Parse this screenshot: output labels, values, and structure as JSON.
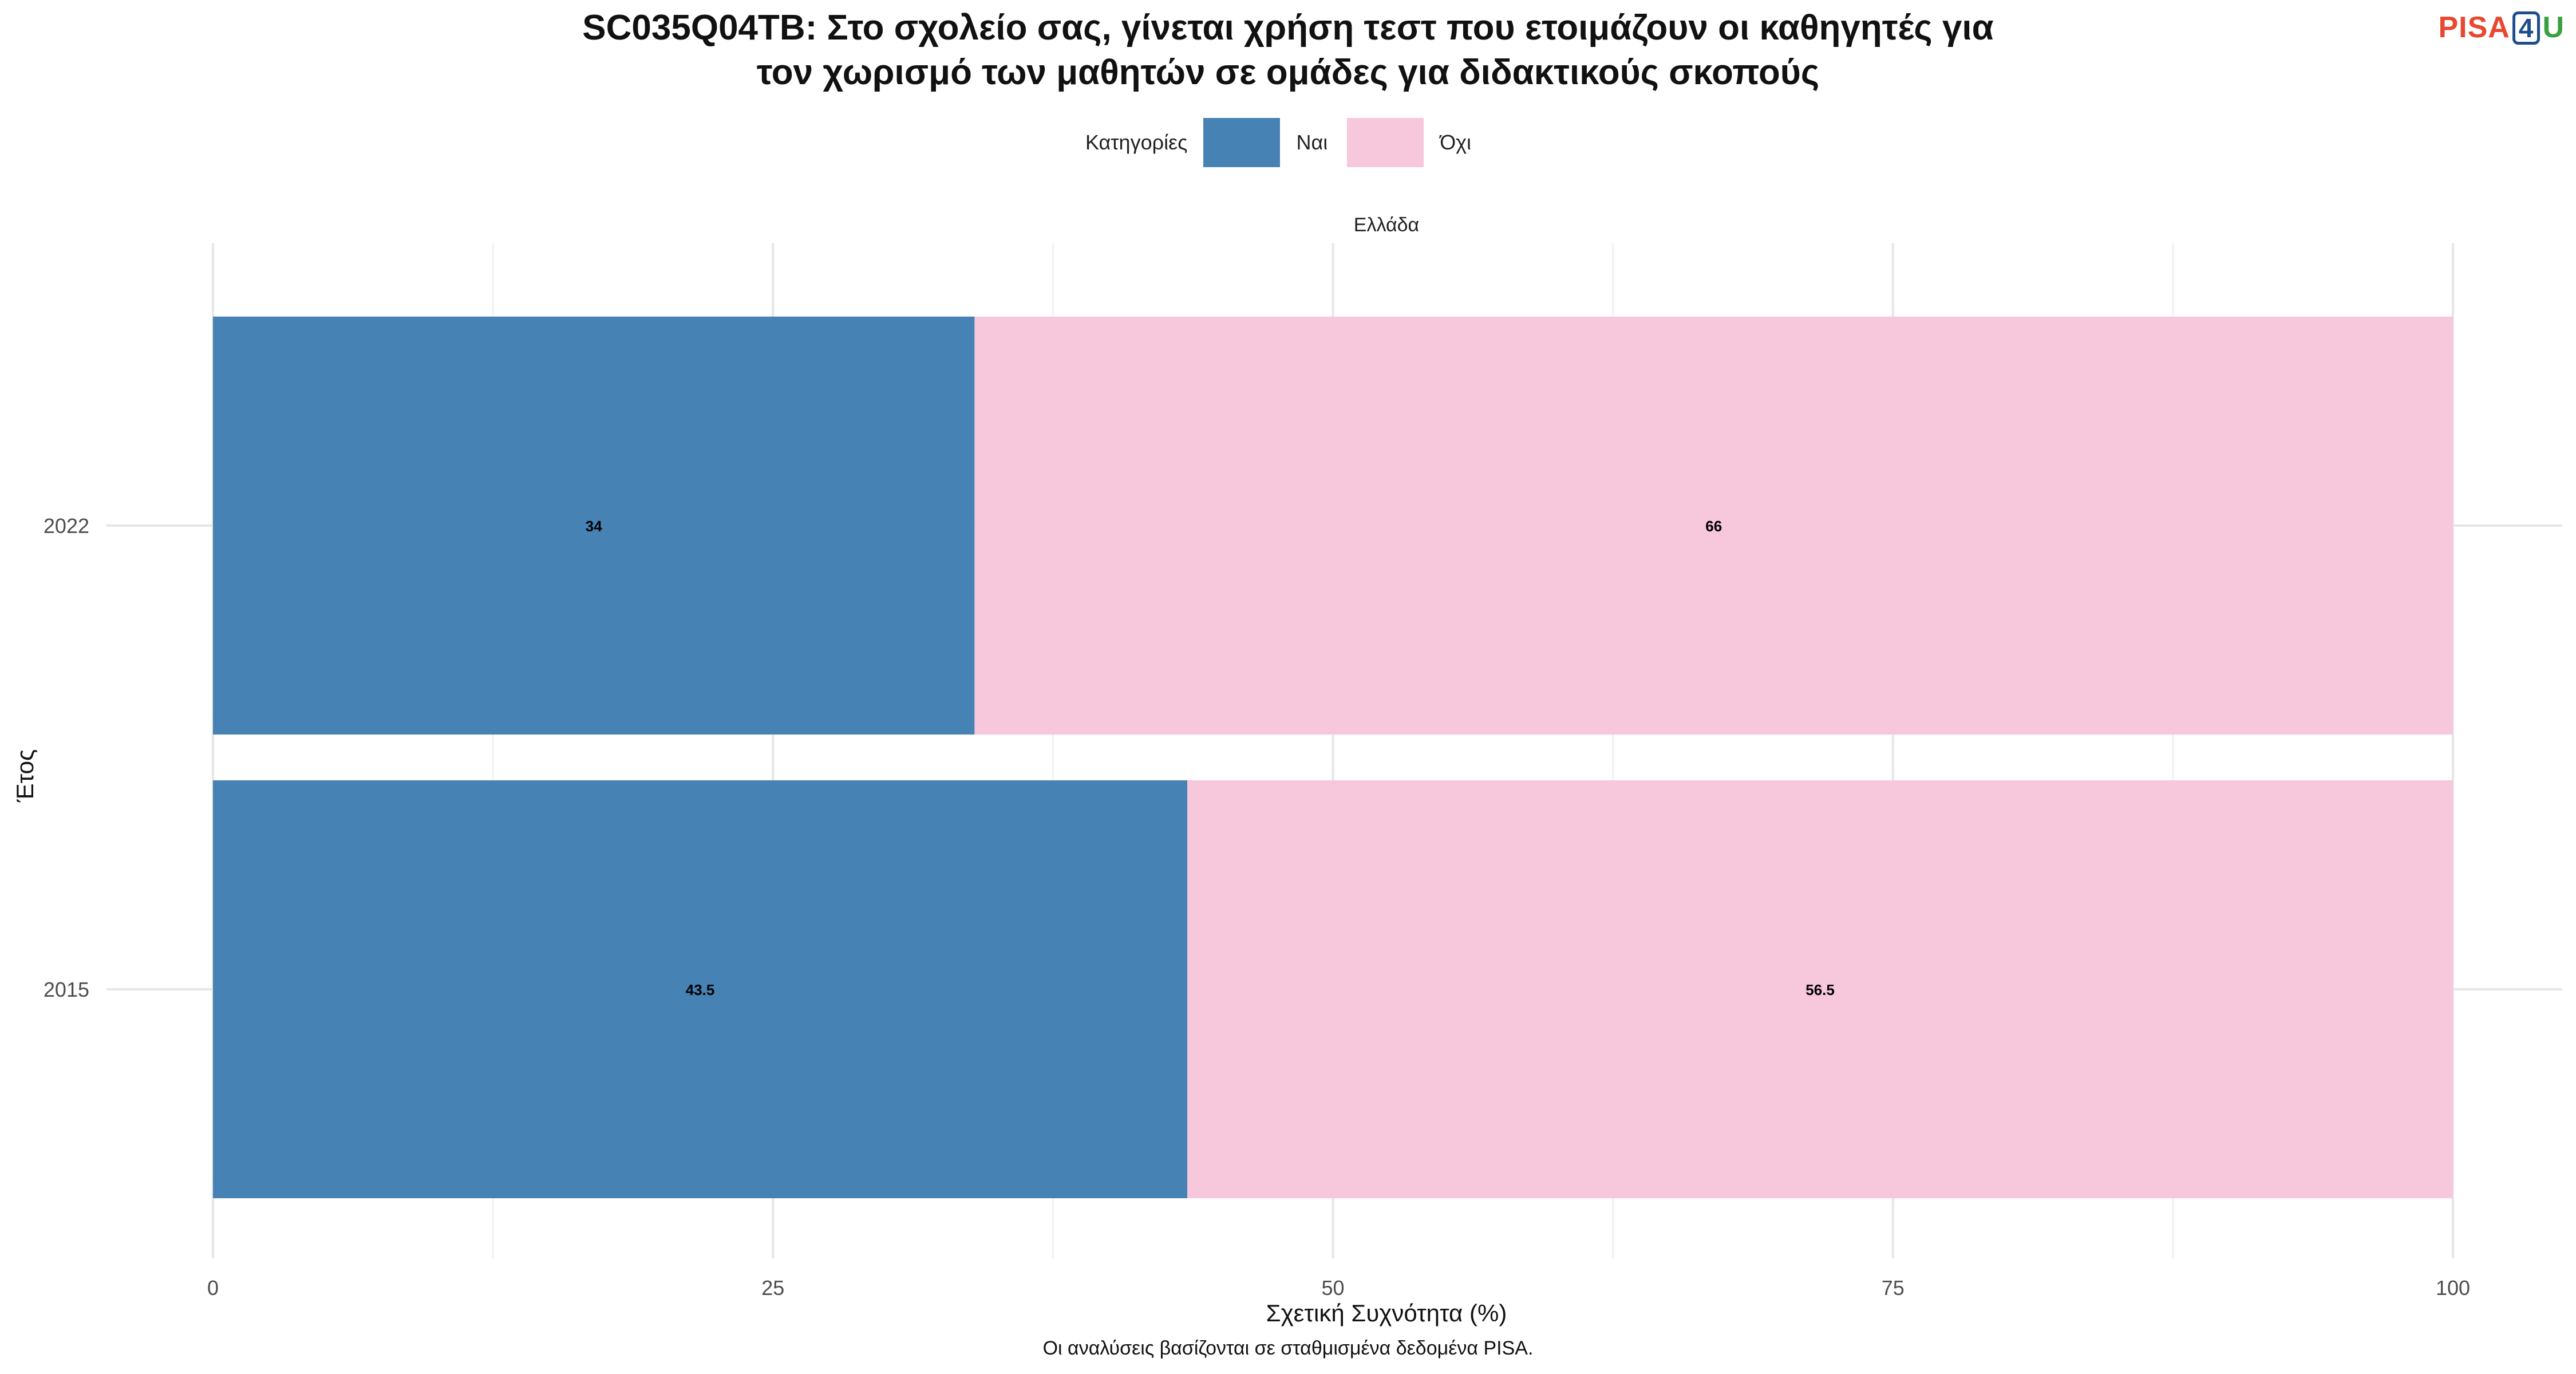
{
  "title": {
    "line1": "SC035Q04TB: Στο σχολείο σας, γίνεται χρήση τεστ που ετοιμάζουν οι καθηγητές για",
    "line2": "τον χωρισμό των μαθητών σε ομάδες για διδακτικούς σκοπούς"
  },
  "logo": {
    "part1": "PISA",
    "part2": "4",
    "part3": "U"
  },
  "legend": {
    "title": "Κατηγορίες",
    "items": [
      {
        "label": "Ναι",
        "color": "#4682b4"
      },
      {
        "label": "Όχι",
        "color": "#f7c7dc"
      }
    ]
  },
  "caption": "Οι αναλύσεις βασίζονται σε σταθμισμένα δεδομένα PISA.",
  "chart_data": {
    "type": "bar",
    "orientation": "horizontal",
    "stacked": true,
    "facet": "Ελλάδα",
    "categories": [
      "2022",
      "2015"
    ],
    "series": [
      {
        "name": "Ναι",
        "values": [
          34,
          43.5
        ],
        "color": "#4682b4"
      },
      {
        "name": "Όχι",
        "values": [
          66,
          56.5
        ],
        "color": "#f7c7dc"
      }
    ],
    "xlabel": "Σχετική Συχνότητα (%)",
    "ylabel": "Έτος",
    "xlim": [
      0,
      100
    ],
    "xticks": [
      0,
      25,
      50,
      75,
      100
    ],
    "grid": true,
    "legend_position": "top"
  }
}
